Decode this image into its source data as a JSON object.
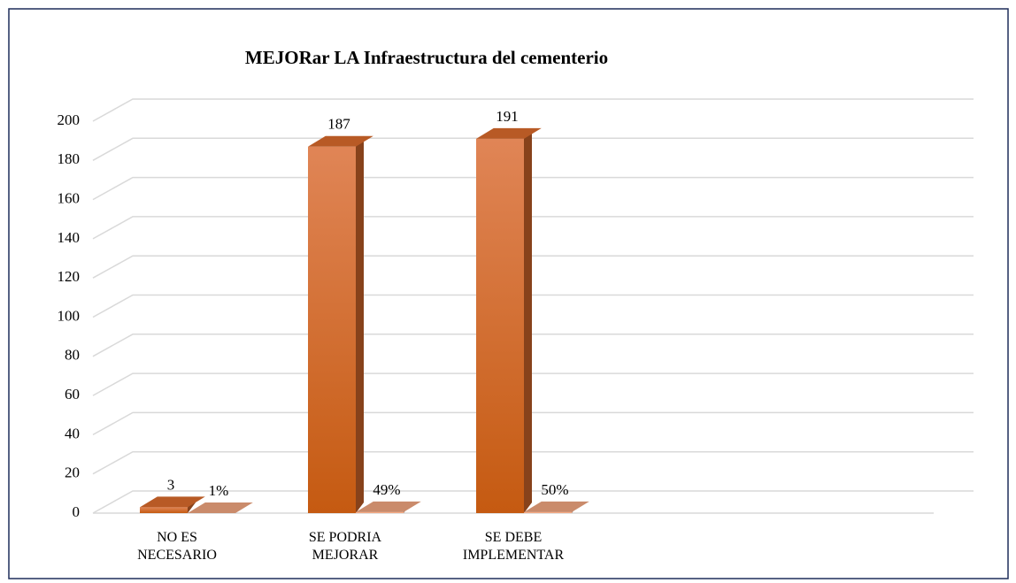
{
  "chart_data": {
    "type": "bar3d",
    "title": "MEJORar LA Infraestructura del cementerio",
    "categories": [
      "NO ES NECESARIO",
      "SE PODRIA MEJORAR",
      "SE DEBE IMPLEMENTAR",
      null,
      null
    ],
    "series": [
      {
        "color": "#d96a2b",
        "values": [
          3,
          187,
          191,
          null,
          null
        ]
      },
      {
        "color": "#f6a983",
        "values": [
          0.01,
          0.49,
          0.5,
          null,
          null
        ],
        "value_labels": [
          "1%",
          "49%",
          "50%",
          null,
          null
        ]
      }
    ],
    "ylim": [
      0,
      200
    ],
    "yticks": [
      0,
      20,
      40,
      60,
      80,
      100,
      120,
      140,
      160,
      180,
      200
    ],
    "grid": true
  }
}
